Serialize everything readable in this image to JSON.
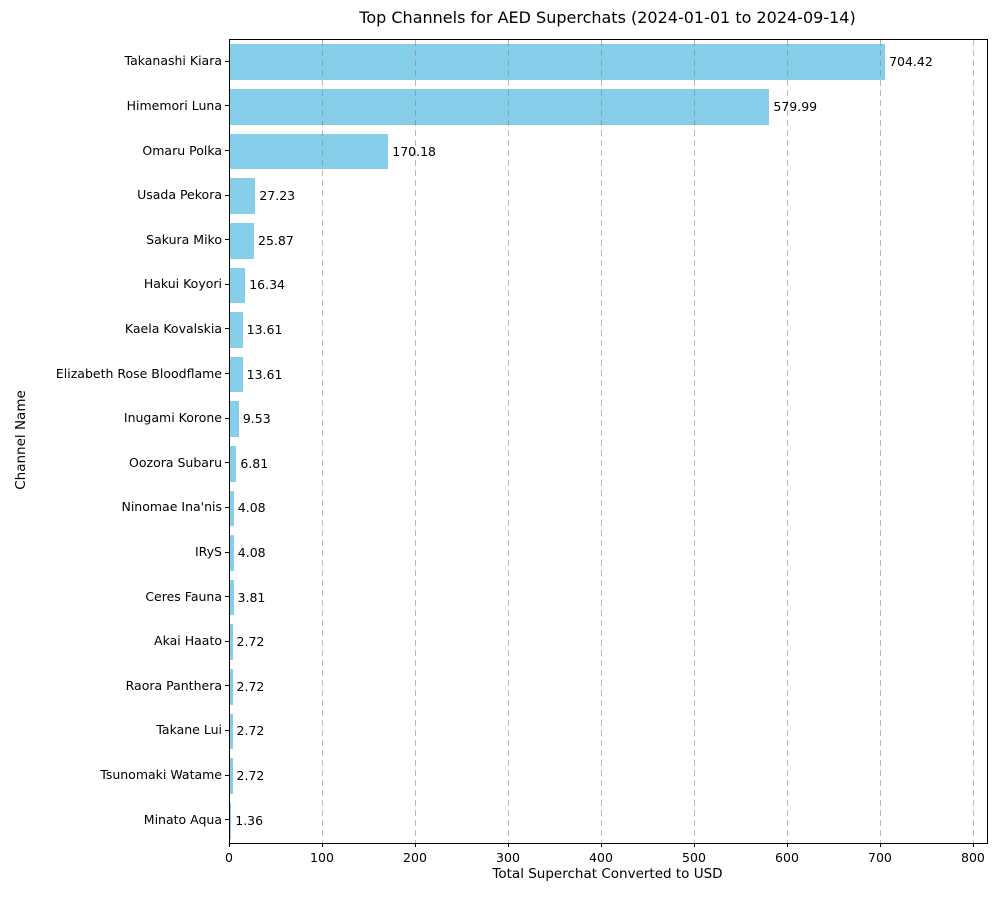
{
  "chart_data": {
    "type": "bar",
    "orientation": "horizontal",
    "title": "Top Channels for AED Superchats (2024-01-01 to 2024-09-14)",
    "xlabel": "Total Superchat Converted to USD",
    "ylabel": "Channel Name",
    "categories": [
      "Takanashi Kiara",
      "Himemori Luna",
      "Omaru Polka",
      "Usada Pekora",
      "Sakura Miko",
      "Hakui Koyori",
      "Kaela Kovalskia",
      "Elizabeth Rose Bloodflame",
      "Inugami Korone",
      "Oozora Subaru",
      "Ninomae Ina'nis",
      "IRyS",
      "Ceres Fauna",
      "Akai Haato",
      "Raora Panthera",
      "Takane Lui",
      "Tsunomaki Watame",
      "Minato Aqua"
    ],
    "values": [
      704.42,
      579.99,
      170.18,
      27.23,
      25.87,
      16.34,
      13.61,
      13.61,
      9.53,
      6.81,
      4.08,
      4.08,
      3.81,
      2.72,
      2.72,
      2.72,
      2.72,
      1.36
    ],
    "value_labels": [
      "704.42",
      "579.99",
      "170.18",
      "27.23",
      "25.87",
      "16.34",
      "13.61",
      "13.61",
      "9.53",
      "6.81",
      "4.08",
      "4.08",
      "3.81",
      "2.72",
      "2.72",
      "2.72",
      "2.72",
      "1.36"
    ],
    "x_ticks": [
      0,
      100,
      200,
      300,
      400,
      500,
      600,
      700,
      800
    ],
    "xlim": [
      0,
      814
    ],
    "grid": true,
    "grid_axis": "x",
    "grid_style": "dashed",
    "legend": "none",
    "bar_color": "#87CEEB",
    "grid_color": "#808080",
    "axis_color": "#000000",
    "text_color": "#000000"
  }
}
